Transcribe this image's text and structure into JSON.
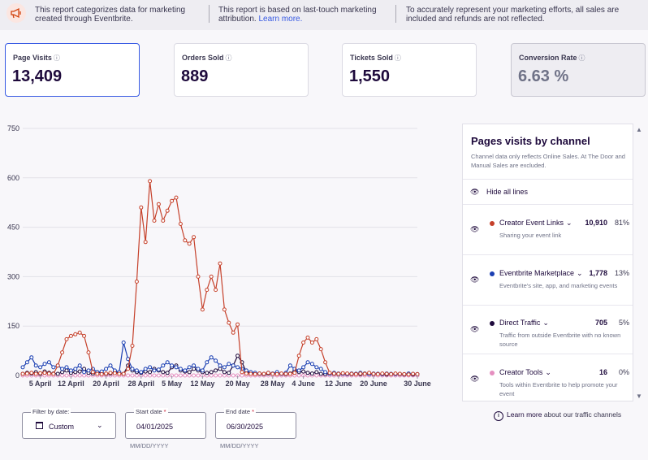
{
  "banner": {
    "notes": [
      "This report categorizes data for marketing created through Eventbrite.",
      "This report is based on last-touch marketing attribution.",
      "To accurately represent your marketing efforts, all sales are included and refunds are not reflected."
    ],
    "learn_more": "Learn more."
  },
  "metrics": [
    {
      "label": "Page Visits",
      "value": "13,409"
    },
    {
      "label": "Orders Sold",
      "value": "889"
    },
    {
      "label": "Tickets Sold",
      "value": "1,550"
    },
    {
      "label": "Conversion Rate",
      "value": "6.63 %"
    }
  ],
  "panel": {
    "title": "Pages visits by channel",
    "description": "Channel data only reflects Online Sales. At The Door and Manual Sales are excluded.",
    "hide_all": "Hide all lines",
    "channels": [
      {
        "name": "Creator Event Links",
        "count": "10,910",
        "pct": "81%",
        "desc": "Sharing your event link",
        "color": "#c5402a"
      },
      {
        "name": "Eventbrite Marketplace",
        "count": "1,778",
        "pct": "13%",
        "desc": "Eventbrite's site, app, and marketing events",
        "color": "#1b3fb2"
      },
      {
        "name": "Direct Traffic",
        "count": "705",
        "pct": "5%",
        "desc": "Traffic from outside Eventbrite with no known source",
        "color": "#1e0a3c"
      },
      {
        "name": "Creator Tools",
        "count": "16",
        "pct": "0%",
        "desc": "Tools within Eventbrite to help promote your event",
        "color": "#e58fc0"
      }
    ]
  },
  "learn": {
    "link": "Learn more",
    "text": "about our traffic channels"
  },
  "filters": {
    "by_date_label": "Filter by date:",
    "by_date_value": "Custom",
    "start_label": "Start date",
    "start_value": "04/01/2025",
    "end_label": "End date",
    "end_value": "06/30/2025",
    "required_mark": "*",
    "hint": "MM/DD/YYYY"
  },
  "chart_data": {
    "type": "line",
    "ylim": [
      0,
      750
    ],
    "yticks": [
      0,
      150,
      300,
      450,
      600,
      750
    ],
    "x_start": "April 1",
    "x_count": 91,
    "x_ticks": [
      {
        "label": "5 April",
        "day": 4
      },
      {
        "label": "12 April",
        "day": 11
      },
      {
        "label": "20 April",
        "day": 19
      },
      {
        "label": "28 April",
        "day": 27
      },
      {
        "label": "5 May",
        "day": 34
      },
      {
        "label": "12 May",
        "day": 41
      },
      {
        "label": "20 May",
        "day": 49
      },
      {
        "label": "28 May",
        "day": 57
      },
      {
        "label": "4 June",
        "day": 64
      },
      {
        "label": "12 June",
        "day": 72
      },
      {
        "label": "20 June",
        "day": 80
      },
      {
        "label": "30 June",
        "day": 90
      }
    ],
    "series": [
      {
        "name": "Creator Event Links",
        "color": "#c5402a",
        "values": [
          5,
          6,
          8,
          5,
          7,
          8,
          6,
          5,
          30,
          70,
          110,
          120,
          125,
          130,
          120,
          70,
          10,
          5,
          4,
          6,
          8,
          7,
          5,
          5,
          20,
          90,
          285,
          510,
          405,
          590,
          470,
          520,
          470,
          500,
          530,
          540,
          460,
          410,
          400,
          420,
          300,
          200,
          260,
          300,
          260,
          340,
          200,
          160,
          130,
          155,
          10,
          6,
          5,
          4,
          6,
          5,
          8,
          5,
          4,
          6,
          5,
          5,
          8,
          60,
          100,
          115,
          100,
          110,
          80,
          40,
          8,
          6,
          5,
          7,
          6,
          5,
          4,
          6,
          5,
          8,
          5,
          4,
          6,
          5,
          4,
          6,
          5,
          4,
          3,
          5,
          4
        ]
      },
      {
        "name": "Eventbrite Marketplace",
        "color": "#1b3fb2",
        "values": [
          25,
          40,
          55,
          30,
          25,
          35,
          40,
          25,
          30,
          20,
          25,
          15,
          20,
          30,
          10,
          15,
          20,
          10,
          12,
          20,
          30,
          15,
          10,
          100,
          50,
          20,
          15,
          10,
          20,
          25,
          15,
          18,
          30,
          40,
          30,
          25,
          20,
          15,
          25,
          30,
          20,
          15,
          40,
          55,
          45,
          30,
          25,
          35,
          30,
          25,
          20,
          15,
          10,
          8,
          6,
          5,
          8,
          6,
          10,
          5,
          8,
          30,
          20,
          15,
          25,
          40,
          35,
          25,
          20,
          10,
          5,
          8,
          6,
          5,
          4,
          6,
          5,
          8,
          5,
          4,
          6,
          5,
          4,
          6,
          5,
          4,
          5,
          4,
          6,
          5,
          4
        ]
      },
      {
        "name": "Direct Traffic",
        "color": "#1e0a3c",
        "values": [
          5,
          8,
          6,
          10,
          5,
          12,
          8,
          6,
          5,
          10,
          15,
          8,
          10,
          12,
          20,
          8,
          6,
          10,
          8,
          5,
          6,
          10,
          8,
          5,
          30,
          15,
          10,
          8,
          12,
          10,
          20,
          15,
          10,
          8,
          25,
          30,
          15,
          12,
          10,
          20,
          15,
          10,
          8,
          10,
          15,
          20,
          10,
          8,
          30,
          60,
          40,
          10,
          8,
          6,
          5,
          4,
          6,
          5,
          8,
          5,
          4,
          6,
          15,
          10,
          12,
          8,
          6,
          10,
          5,
          4,
          6,
          5,
          4,
          6,
          5,
          4,
          5,
          4,
          6,
          5,
          4,
          5,
          4,
          3,
          4,
          5,
          4,
          3,
          4,
          3,
          4
        ]
      },
      {
        "name": "Creator Tools",
        "color": "#e58fc0",
        "values": [
          0,
          0,
          0,
          0,
          0,
          0,
          0,
          0,
          0,
          0,
          0,
          0,
          0,
          0,
          0,
          0,
          0,
          0,
          0,
          0,
          0,
          0,
          0,
          0,
          0,
          0,
          0,
          0,
          0,
          0,
          0,
          0,
          0,
          0,
          0,
          0,
          0,
          0,
          0,
          0,
          0,
          0,
          0,
          0,
          0,
          0,
          0,
          0,
          0,
          0,
          0,
          0,
          0,
          0,
          0,
          0,
          0,
          0,
          0,
          0,
          0,
          0,
          0,
          0,
          0,
          0,
          0,
          0,
          0,
          0,
          0,
          0,
          0,
          0,
          0,
          0,
          0,
          0,
          0,
          0,
          0,
          0,
          0,
          0,
          0,
          0,
          0,
          0,
          0,
          0,
          0
        ]
      }
    ]
  }
}
